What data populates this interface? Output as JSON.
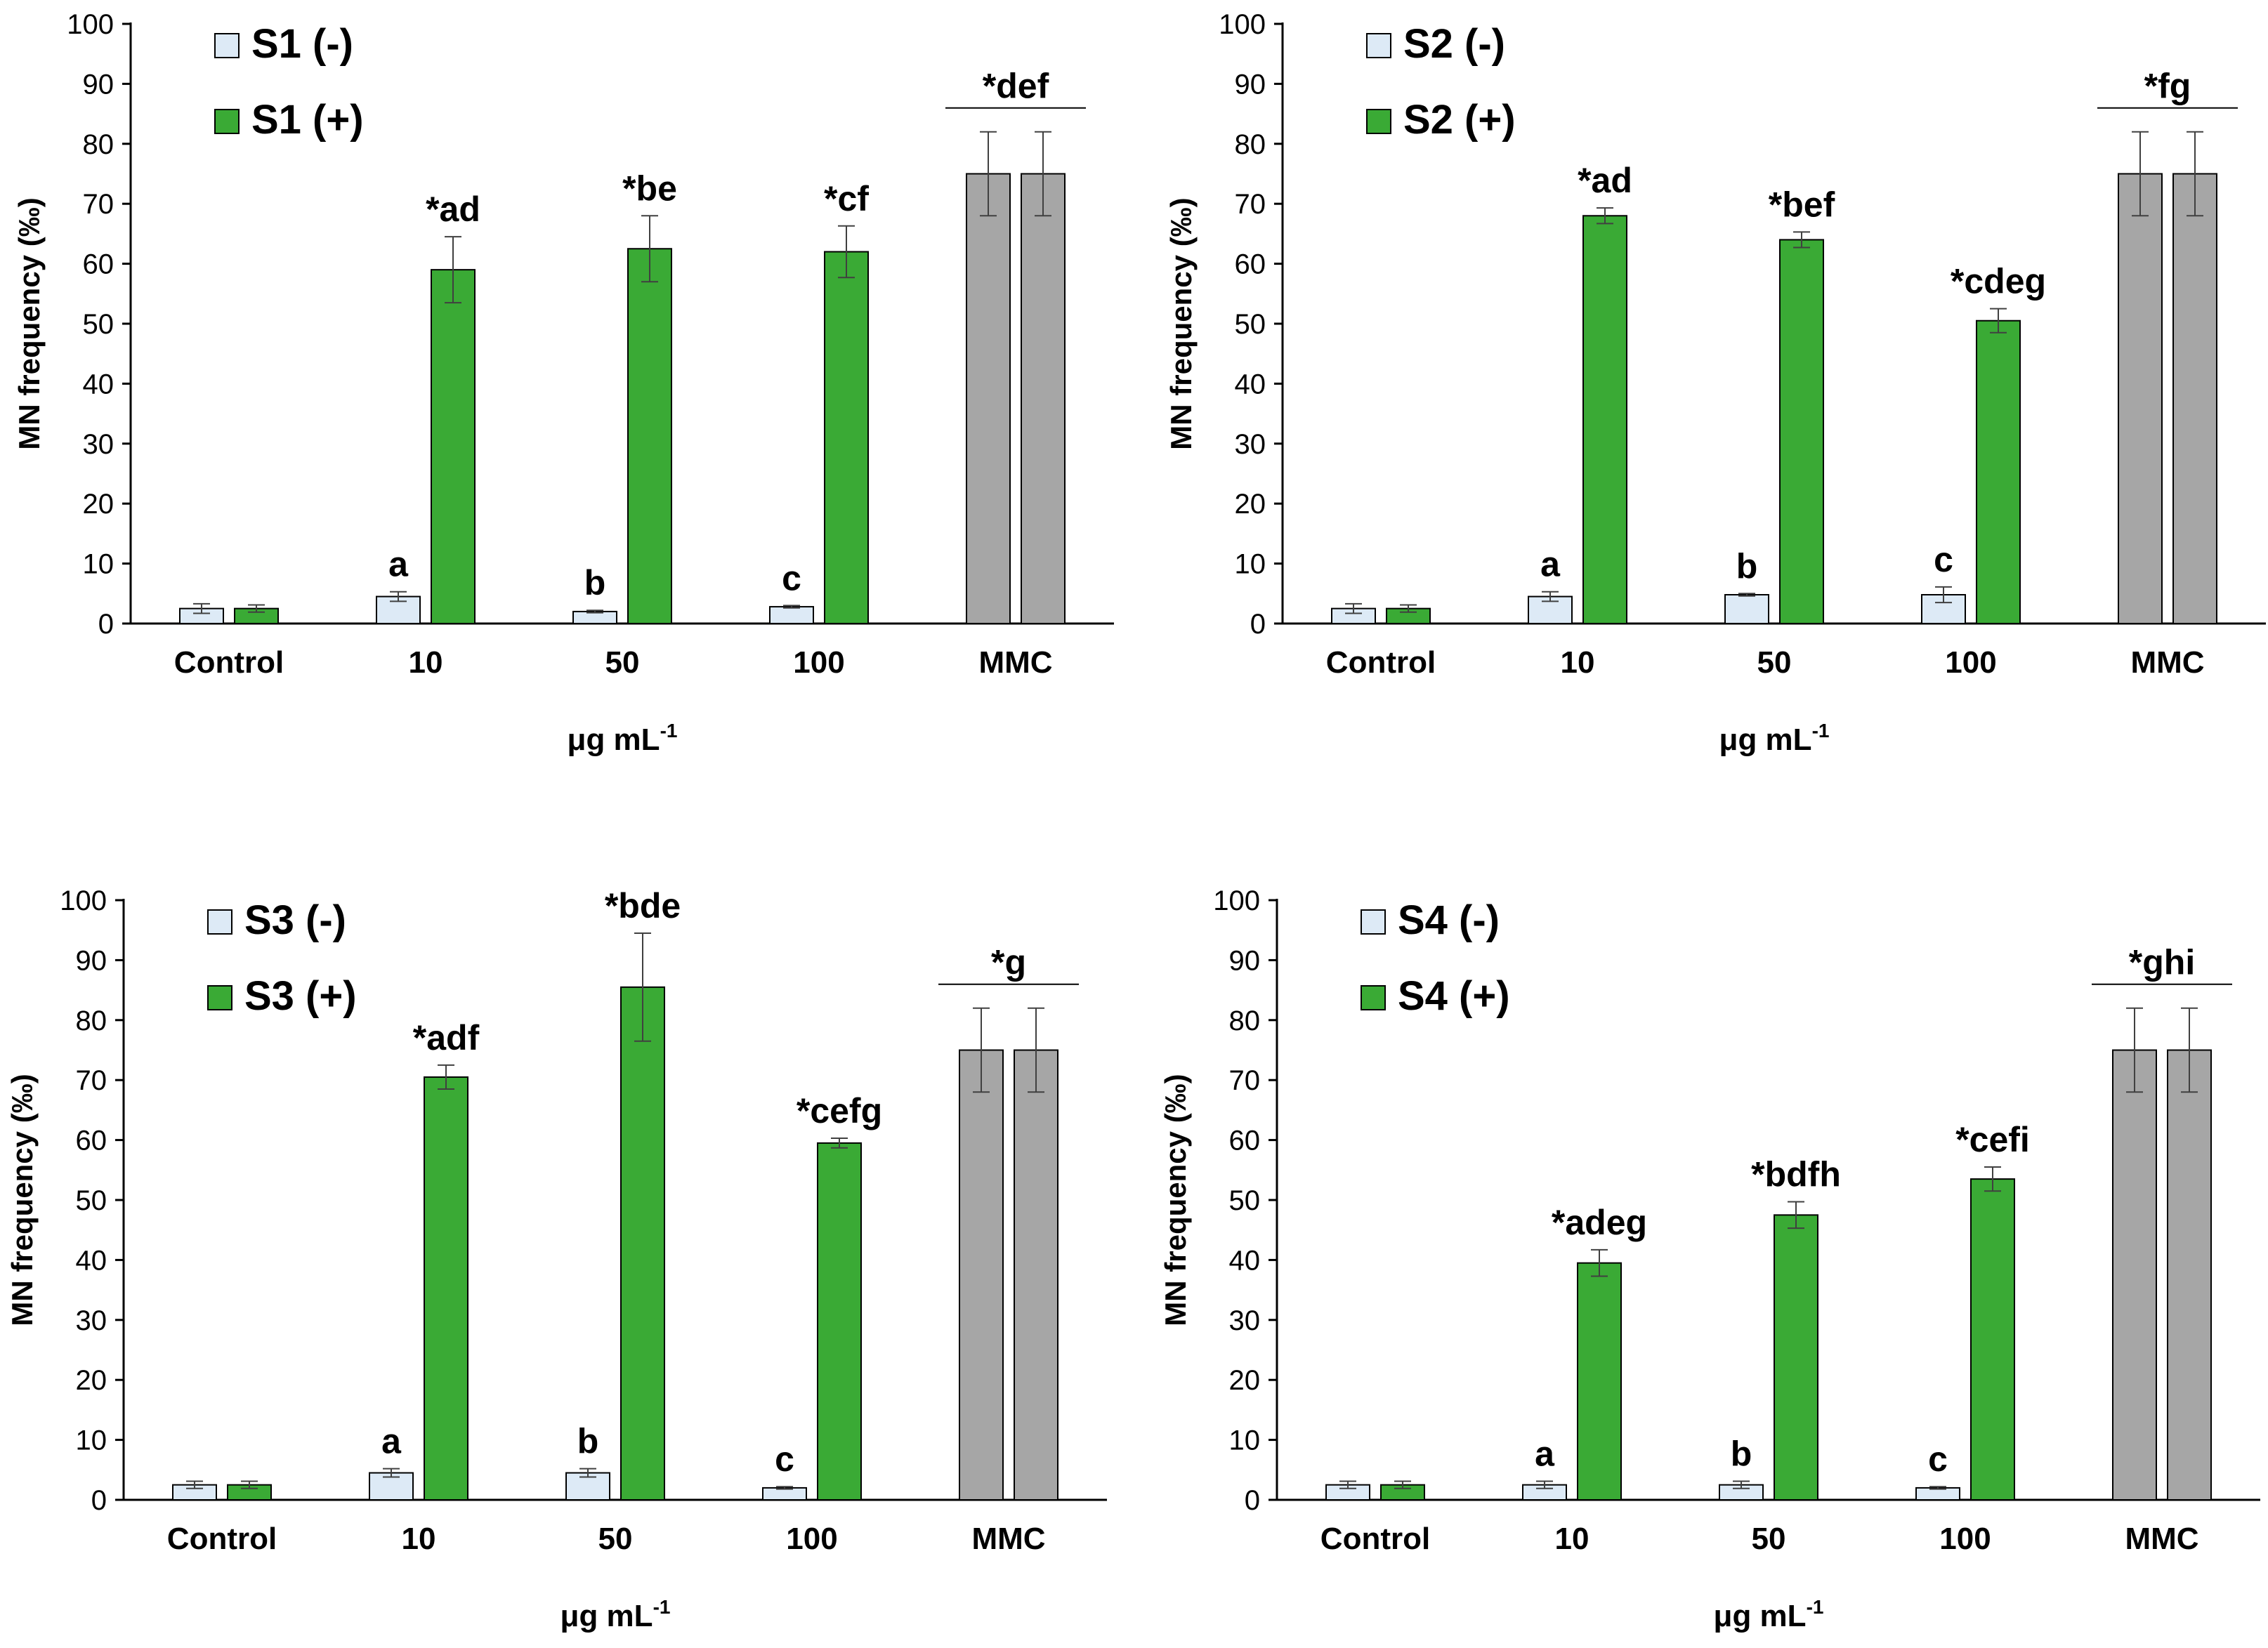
{
  "colors": {
    "minus": "#ddeaf6",
    "plus": "#3aaa35",
    "mmc": "#a6a6a6",
    "outline": "#000000",
    "error": "#404040"
  },
  "chart_data": [
    {
      "type": "bar",
      "categories": [
        "Control",
        "10",
        "50",
        "100",
        "MMC"
      ],
      "xlabel": "μg mL",
      "xlabel_sup": "-1",
      "ylabel": "MN frequency (‰)",
      "ylim": [
        0,
        100
      ],
      "yticks": [
        0,
        10,
        20,
        30,
        40,
        50,
        60,
        70,
        80,
        90,
        100
      ],
      "legend_position": "top-left",
      "series": [
        {
          "name": "S1 (-)",
          "values": [
            2.5,
            4.5,
            2,
            2.8,
            75
          ],
          "errors": [
            0.8,
            0.8,
            0.2,
            0.2,
            7
          ],
          "labels": [
            "",
            "a",
            "b",
            "c",
            ""
          ]
        },
        {
          "name": "S1 (+)",
          "values": [
            2.5,
            59,
            62.5,
            62,
            75
          ],
          "errors": [
            0.6,
            5.5,
            5.5,
            4.3,
            7
          ],
          "labels": [
            "",
            "*ad",
            "*be",
            "*cf",
            ""
          ]
        }
      ],
      "bracket_label": "*def"
    },
    {
      "type": "bar",
      "categories": [
        "Control",
        "10",
        "50",
        "100",
        "MMC"
      ],
      "xlabel": "μg mL",
      "xlabel_sup": "-1",
      "ylabel": "MN frequency (‰)",
      "ylim": [
        0,
        100
      ],
      "yticks": [
        0,
        10,
        20,
        30,
        40,
        50,
        60,
        70,
        80,
        90,
        100
      ],
      "legend_position": "top-left",
      "series": [
        {
          "name": "S2 (-)",
          "values": [
            2.5,
            4.5,
            4.8,
            4.8,
            75
          ],
          "errors": [
            0.8,
            0.8,
            0.2,
            1.3,
            7
          ],
          "labels": [
            "",
            "a",
            "b",
            "c",
            ""
          ]
        },
        {
          "name": "S2 (+)",
          "values": [
            2.5,
            68,
            64,
            50.5,
            75
          ],
          "errors": [
            0.6,
            1.3,
            1.3,
            2.0,
            7
          ],
          "labels": [
            "",
            "*ad",
            "*bef",
            "*cdeg",
            ""
          ]
        }
      ],
      "bracket_label": "*fg"
    },
    {
      "type": "bar",
      "categories": [
        "Control",
        "10",
        "50",
        "100",
        "MMC"
      ],
      "xlabel": "μg mL",
      "xlabel_sup": "-1",
      "ylabel": "MN frequency (‰)",
      "ylim": [
        0,
        100
      ],
      "yticks": [
        0,
        10,
        20,
        30,
        40,
        50,
        60,
        70,
        80,
        90,
        100
      ],
      "legend_position": "top-left",
      "series": [
        {
          "name": "S3 (-)",
          "values": [
            2.5,
            4.5,
            4.5,
            2,
            75
          ],
          "errors": [
            0.6,
            0.7,
            0.7,
            0.2,
            7
          ],
          "labels": [
            "",
            "a",
            "b",
            "c",
            ""
          ]
        },
        {
          "name": "S3 (+)",
          "values": [
            2.5,
            70.5,
            85.5,
            59.5,
            75
          ],
          "errors": [
            0.6,
            2.0,
            9.0,
            0.8,
            7
          ],
          "labels": [
            "",
            "*adf",
            "*bde",
            "*cefg",
            ""
          ]
        }
      ],
      "bracket_label": "*g"
    },
    {
      "type": "bar",
      "categories": [
        "Control",
        "10",
        "50",
        "100",
        "MMC"
      ],
      "xlabel": "μg mL",
      "xlabel_sup": "-1",
      "ylabel": "MN frequency (‰)",
      "ylim": [
        0,
        100
      ],
      "yticks": [
        0,
        10,
        20,
        30,
        40,
        50,
        60,
        70,
        80,
        90,
        100
      ],
      "legend_position": "top-left",
      "series": [
        {
          "name": "S4 (-)",
          "values": [
            2.5,
            2.5,
            2.5,
            2,
            75
          ],
          "errors": [
            0.6,
            0.6,
            0.6,
            0.2,
            7
          ],
          "labels": [
            "",
            "a",
            "b",
            "c",
            ""
          ]
        },
        {
          "name": "S4 (+)",
          "values": [
            2.5,
            39.5,
            47.5,
            53.5,
            75
          ],
          "errors": [
            0.6,
            2.2,
            2.2,
            2.0,
            7
          ],
          "labels": [
            "",
            "*adeg",
            "*bdfh",
            "*cefi",
            ""
          ]
        }
      ],
      "bracket_label": "*ghi"
    }
  ]
}
